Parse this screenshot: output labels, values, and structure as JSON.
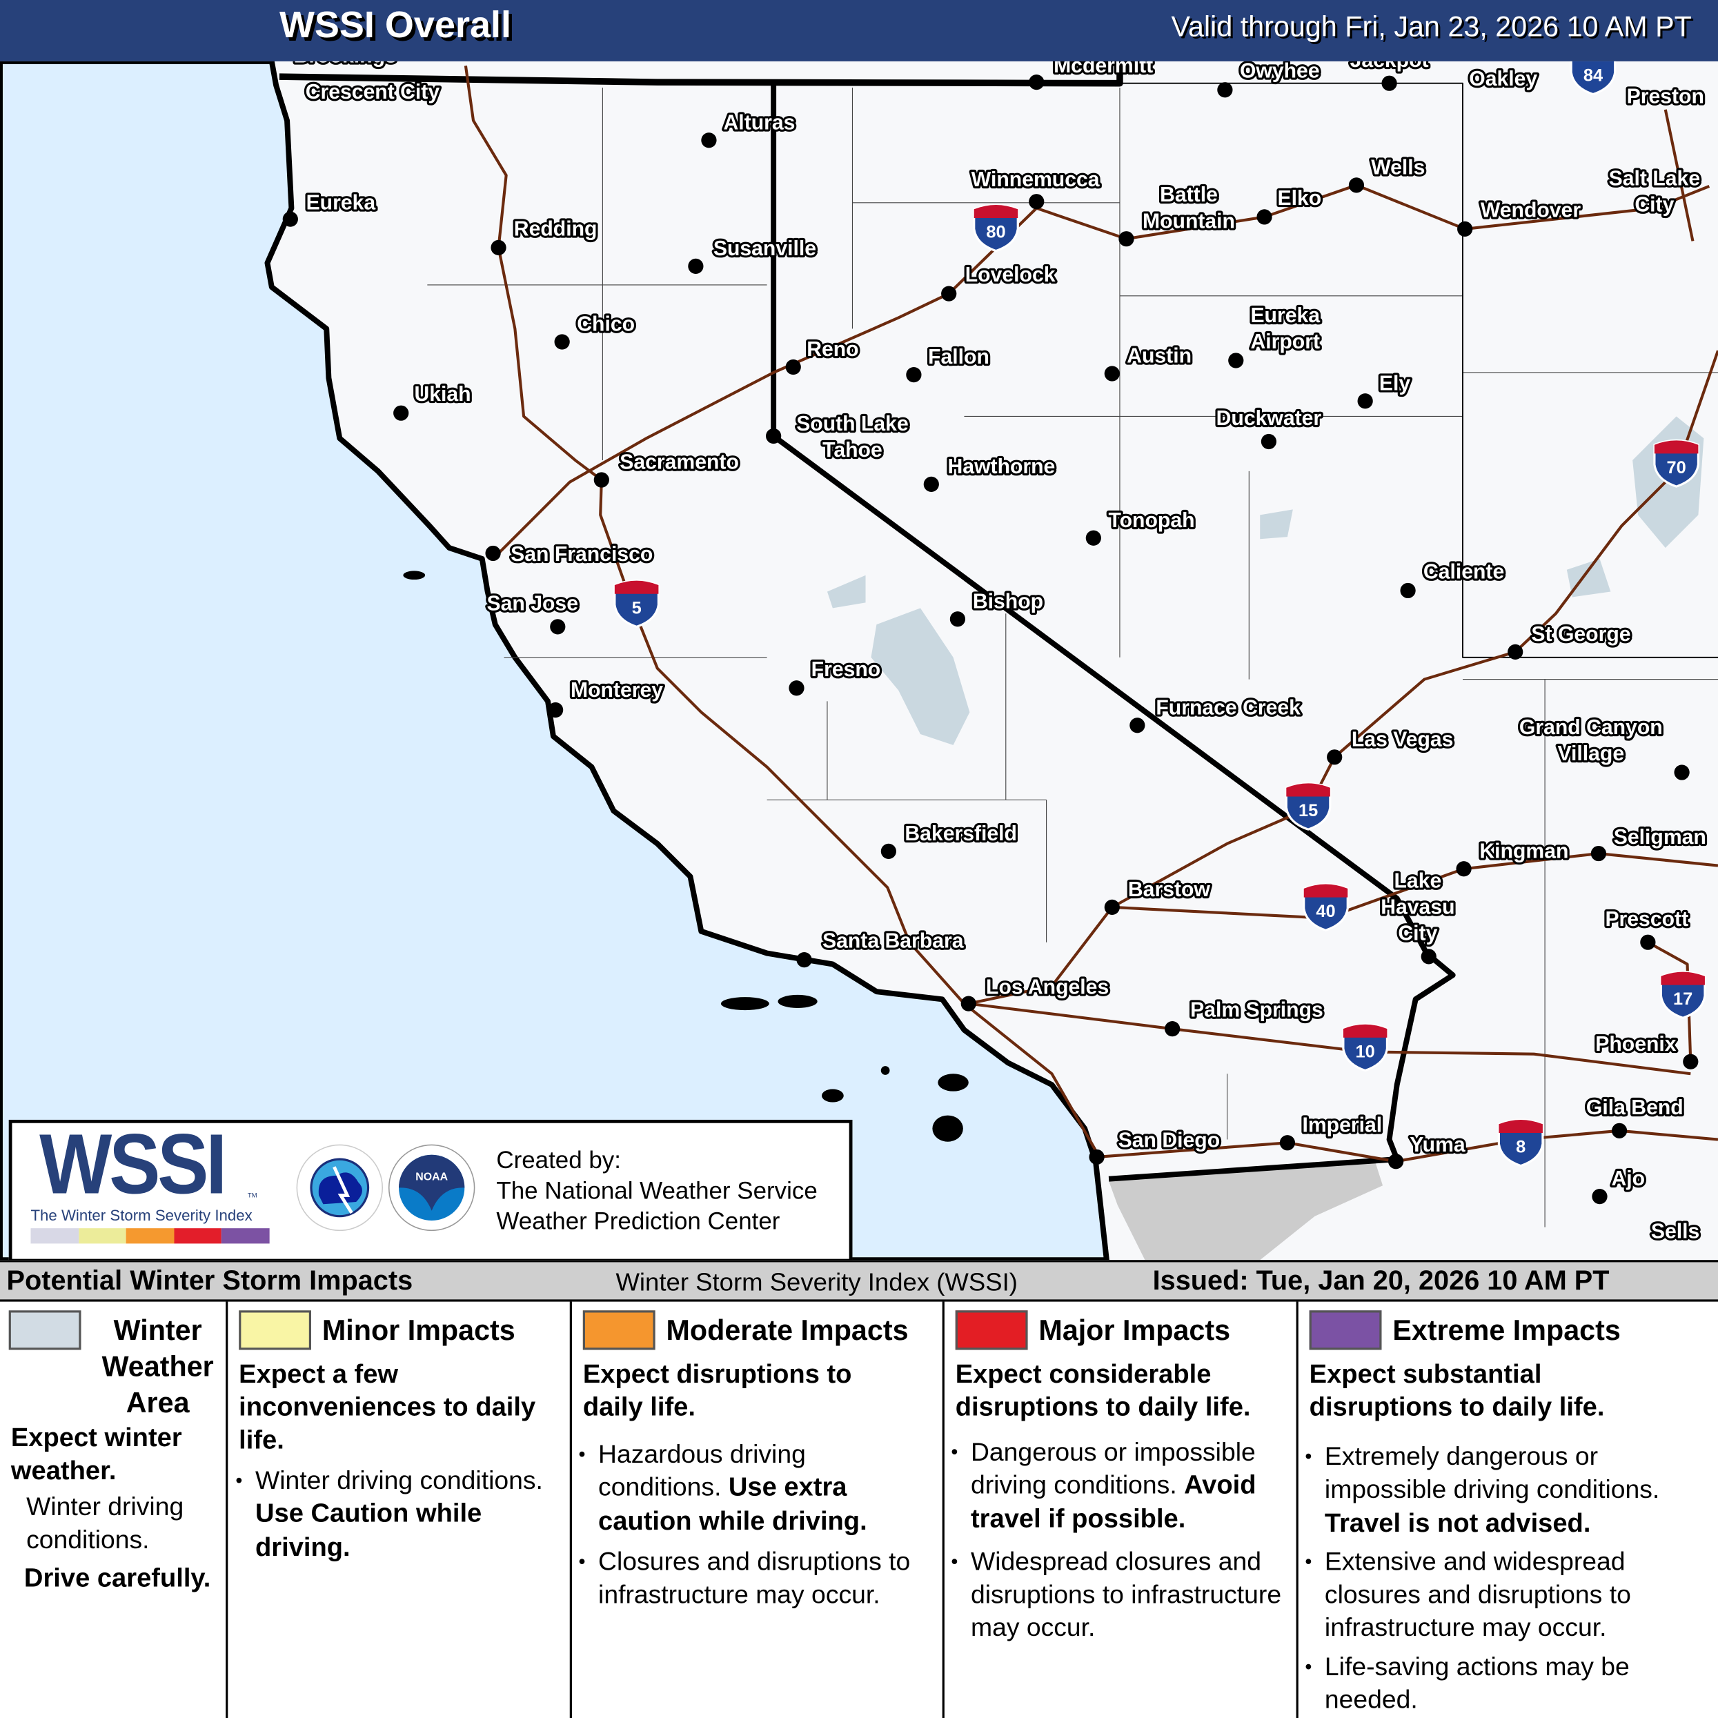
{
  "header": {
    "title": "WSSI Overall",
    "valid": "Valid through Fri, Jan 23, 2026 10 AM PT"
  },
  "map": {
    "cities": [
      "Brookings",
      "Crescent City",
      "Alturas",
      "Mcdermitt",
      "Owyhee",
      "Jackpot",
      "Oakley",
      "Preston",
      "Eureka",
      "Redding",
      "Susanville",
      "Winnemucca",
      "Battle Mountain",
      "Elko",
      "Wells",
      "Wendover",
      "Salt Lake City",
      "Lovelock",
      "Chico",
      "Reno",
      "Fallon",
      "Austin",
      "Eureka Airport",
      "Ely",
      "Ukiah",
      "Duckwater",
      "South Lake Tahoe",
      "Sacramento",
      "Hawthorne",
      "Tonopah",
      "San Francisco",
      "San Jose",
      "Caliente",
      "Bishop",
      "St George",
      "Fresno",
      "Monterey",
      "Furnace Creek",
      "Grand Canyon Village",
      "Las Vegas",
      "Bakersfield",
      "Kingman",
      "Seligman",
      "Barstow",
      "Lake Havasu City",
      "Prescott",
      "Santa Barbara",
      "Los Angeles",
      "Palm Springs",
      "Phoenix",
      "Gila Bend",
      "San Diego",
      "Imperial",
      "Yuma",
      "Ajo",
      "Sells"
    ],
    "interstates": [
      "84",
      "80",
      "70",
      "5",
      "15",
      "40",
      "17",
      "10",
      "8"
    ],
    "colors": {
      "ocean": "#dcefff",
      "land": "#f7f8fa",
      "highway": "#6b2a0e",
      "snow": "#cad8e0",
      "mexico": "#cccccc",
      "header": "#27417a"
    }
  },
  "logo": {
    "wordmark": "WSSI",
    "tm": "TM",
    "subtitle": "The Winter Storm Severity Index",
    "nws_text": "NATIONAL WEATHER SERVICE",
    "noaa_text": "NOAA",
    "created_by": "Created by:",
    "org1": "The National Weather Service",
    "org2": "Weather Prediction Center",
    "scale_colors": [
      "#d8d8e6",
      "#ecec9a",
      "#f5992f",
      "#e31e2a",
      "#7c52a3"
    ]
  },
  "legend": {
    "title": "Potential Winter Storm Impacts",
    "center": "Winter Storm Severity Index (WSSI)",
    "issued": "Issued: Tue, Jan 20, 2026 10 AM PT",
    "categories": [
      {
        "name": "Winter Weather Area",
        "color": "#d2dce4",
        "expect": "Expect winter weather.",
        "bullets": [
          "Winter driving conditions."
        ],
        "bold": "Drive carefully."
      },
      {
        "name": "Minor Impacts",
        "color": "#f9f5a5",
        "expect": "Expect a few inconveniences to daily life.",
        "bullets": [
          "Winter driving conditions."
        ],
        "bold": "Use Caution while driving."
      },
      {
        "name": "Moderate Impacts",
        "color": "#f5962e",
        "expect": "Expect disruptions to daily life.",
        "bullets": [
          "Hazardous driving conditions.",
          "Closures and disruptions to infrastructure may occur."
        ],
        "bold": "Use extra caution while driving."
      },
      {
        "name": "Major Impacts",
        "color": "#e31e24",
        "expect": "Expect considerable disruptions to daily life.",
        "bullets": [
          "Dangerous or impossible driving conditions.",
          "Widespread closures and disruptions to infrastructure may occur."
        ],
        "bold": "Avoid travel if possible."
      },
      {
        "name": "Extreme Impacts",
        "color": "#7b52a4",
        "expect": "Expect substantial disruptions to daily life.",
        "bullets": [
          "Extremely dangerous or impossible driving conditions.",
          "Extensive and widespread closures and disruptions to infrastructure may occur.",
          "Life-saving actions may be needed."
        ],
        "bold": "Travel is not advised."
      }
    ]
  }
}
